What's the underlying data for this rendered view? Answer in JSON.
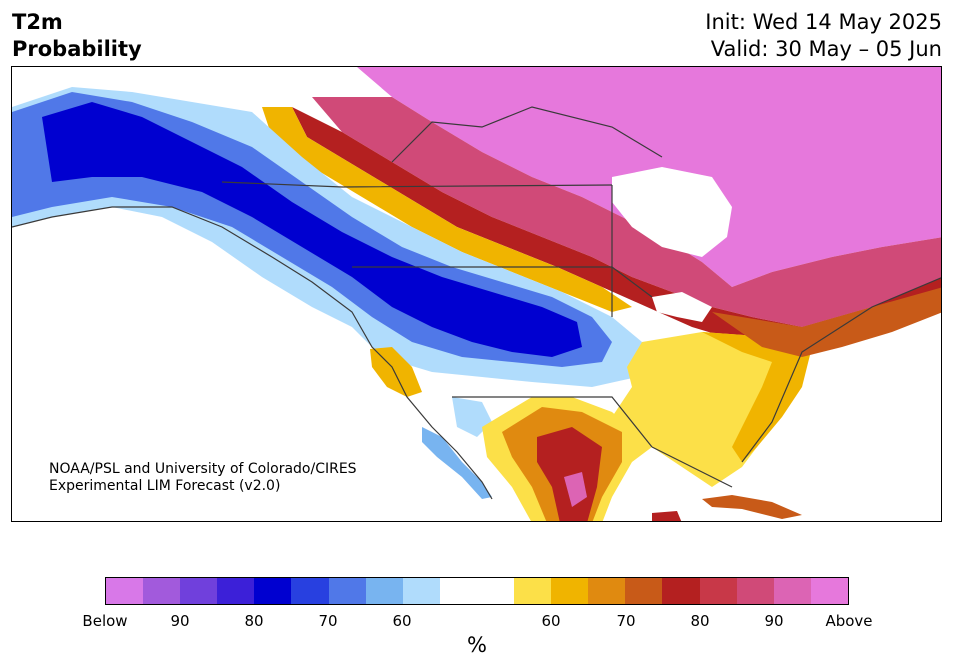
{
  "header": {
    "title_line1": "T2m",
    "title_line2": "Probability",
    "init_line": "Init: Wed 14 May 2025",
    "valid_line": "Valid: 30 May – 05 Jun"
  },
  "map": {
    "credit_line1": "NOAA/PSL and University of Colorado/CIRES",
    "credit_line2": "Experimental LIM Forecast (v2.0)",
    "regions": [
      {
        "name": "Alaska / Pacific Northwest / northern Rockies / northern Plains",
        "category": "Below",
        "probability": "60–85%"
      },
      {
        "name": "Northern Canada / Arctic Archipelago / Hudson Bay region",
        "category": "Above",
        "probability": "85%+"
      },
      {
        "name": "Great Lakes / Northeast US / Atlantic Canada",
        "category": "Above",
        "probability": "65–85%"
      },
      {
        "name": "Southeast US",
        "category": "Above",
        "probability": "55–70%"
      },
      {
        "name": "Texas / northern Mexico",
        "category": "Above",
        "probability": "60–80%"
      },
      {
        "name": "California coast",
        "category": "Above",
        "probability": "55–65%"
      },
      {
        "name": "Baja California / southern Arizona",
        "category": "Below",
        "probability": "55–70%"
      },
      {
        "name": "Cuba",
        "category": "Above",
        "probability": "70–80%"
      }
    ]
  },
  "colorbar": {
    "unit": "%",
    "colors": [
      "#d878e8",
      "#a25adc",
      "#7040dc",
      "#3c20d8",
      "#0000d0",
      "#2840e0",
      "#5078e8",
      "#78b4f0",
      "#b0dcfc",
      "#ffffff",
      "#ffffff",
      "#fce048",
      "#f0b400",
      "#e08a10",
      "#c85a18",
      "#b42020",
      "#c83848",
      "#d04a78",
      "#dc64b4",
      "#e678dc"
    ],
    "ticks": [
      {
        "label": "Below"
      },
      {
        "label": "90"
      },
      {
        "label": "80"
      },
      {
        "label": "70"
      },
      {
        "label": "60"
      },
      {
        "label": "60"
      },
      {
        "label": "70"
      },
      {
        "label": "80"
      },
      {
        "label": "90"
      },
      {
        "label": "Above"
      }
    ]
  }
}
